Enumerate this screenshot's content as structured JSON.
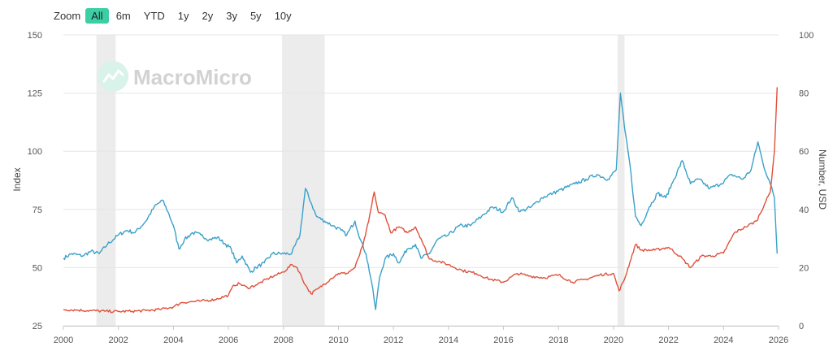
{
  "toolbar": {
    "zoom_label": "Zoom",
    "buttons": [
      "All",
      "6m",
      "YTD",
      "1y",
      "2y",
      "3y",
      "5y",
      "10y"
    ],
    "active": "All"
  },
  "watermark": {
    "text": "MacroMicro"
  },
  "colors": {
    "series1": "#3aa0c8",
    "series2": "#e0503a",
    "recession": "#ececec",
    "grid": "#e6e6e6"
  },
  "chart_data": {
    "type": "line",
    "title": "",
    "xlabel": "",
    "ylabel_left": "Index",
    "ylabel_right": "Number, USD",
    "xlim": [
      2000,
      2026
    ],
    "ylim_left": [
      25,
      150
    ],
    "ylim_right": [
      0,
      100
    ],
    "x_ticks": [
      "2000",
      "2002",
      "2004",
      "2006",
      "2008",
      "2010",
      "2012",
      "2014",
      "2016",
      "2018",
      "2020",
      "2022",
      "2024",
      "2026"
    ],
    "y_ticks_left": [
      150,
      125,
      100,
      75,
      50,
      25
    ],
    "y_ticks_right": [
      100,
      80,
      60,
      40,
      20,
      0
    ],
    "recession_bands": [
      [
        2001.2,
        2001.9
      ],
      [
        2007.95,
        2009.5
      ],
      [
        2020.15,
        2020.4
      ]
    ],
    "series": [
      {
        "name": "Index (left axis)",
        "axis": "left",
        "color": "#3aa0c8",
        "points": [
          [
            2000.0,
            54
          ],
          [
            2000.3,
            56
          ],
          [
            2000.7,
            55
          ],
          [
            2001.0,
            57
          ],
          [
            2001.3,
            56
          ],
          [
            2001.6,
            60
          ],
          [
            2002.0,
            64
          ],
          [
            2002.3,
            66
          ],
          [
            2002.6,
            65
          ],
          [
            2003.0,
            70
          ],
          [
            2003.3,
            76
          ],
          [
            2003.6,
            79
          ],
          [
            2003.8,
            74
          ],
          [
            2004.0,
            68
          ],
          [
            2004.2,
            58
          ],
          [
            2004.4,
            62
          ],
          [
            2004.7,
            65
          ],
          [
            2005.0,
            64
          ],
          [
            2005.3,
            62
          ],
          [
            2005.6,
            63
          ],
          [
            2005.9,
            60
          ],
          [
            2006.1,
            58
          ],
          [
            2006.3,
            52
          ],
          [
            2006.5,
            55
          ],
          [
            2006.8,
            48
          ],
          [
            2007.0,
            50
          ],
          [
            2007.3,
            52
          ],
          [
            2007.6,
            56
          ],
          [
            2008.0,
            56
          ],
          [
            2008.3,
            56
          ],
          [
            2008.6,
            64
          ],
          [
            2008.8,
            84
          ],
          [
            2009.0,
            78
          ],
          [
            2009.2,
            72
          ],
          [
            2009.5,
            70
          ],
          [
            2009.8,
            68
          ],
          [
            2010.1,
            66
          ],
          [
            2010.3,
            64
          ],
          [
            2010.6,
            70
          ],
          [
            2010.8,
            62
          ],
          [
            2011.0,
            56
          ],
          [
            2011.2,
            44
          ],
          [
            2011.35,
            32
          ],
          [
            2011.5,
            46
          ],
          [
            2011.7,
            54
          ],
          [
            2012.0,
            56
          ],
          [
            2012.2,
            52
          ],
          [
            2012.5,
            58
          ],
          [
            2012.8,
            60
          ],
          [
            2013.0,
            54
          ],
          [
            2013.3,
            56
          ],
          [
            2013.6,
            62
          ],
          [
            2014.0,
            64
          ],
          [
            2014.4,
            68
          ],
          [
            2014.8,
            68
          ],
          [
            2015.2,
            72
          ],
          [
            2015.6,
            76
          ],
          [
            2016.0,
            74
          ],
          [
            2016.3,
            80
          ],
          [
            2016.6,
            74
          ],
          [
            2017.0,
            76
          ],
          [
            2017.4,
            80
          ],
          [
            2017.8,
            82
          ],
          [
            2018.2,
            84
          ],
          [
            2018.6,
            86
          ],
          [
            2019.0,
            88
          ],
          [
            2019.4,
            90
          ],
          [
            2019.8,
            88
          ],
          [
            2020.1,
            92
          ],
          [
            2020.25,
            125
          ],
          [
            2020.4,
            110
          ],
          [
            2020.6,
            94
          ],
          [
            2020.8,
            72
          ],
          [
            2021.0,
            68
          ],
          [
            2021.3,
            76
          ],
          [
            2021.6,
            82
          ],
          [
            2021.9,
            80
          ],
          [
            2022.2,
            88
          ],
          [
            2022.5,
            96
          ],
          [
            2022.8,
            86
          ],
          [
            2023.1,
            88
          ],
          [
            2023.5,
            84
          ],
          [
            2023.9,
            86
          ],
          [
            2024.3,
            90
          ],
          [
            2024.7,
            88
          ],
          [
            2025.0,
            92
          ],
          [
            2025.25,
            104
          ],
          [
            2025.45,
            94
          ],
          [
            2025.7,
            86
          ],
          [
            2025.85,
            80
          ],
          [
            2025.95,
            56
          ]
        ]
      },
      {
        "name": "Number, USD (right axis)",
        "axis": "right",
        "color": "#e0503a",
        "points": [
          [
            2000.0,
            5.6
          ],
          [
            2000.5,
            5.4
          ],
          [
            2001.0,
            5.2
          ],
          [
            2001.5,
            5.0
          ],
          [
            2002.0,
            4.9
          ],
          [
            2002.5,
            5.0
          ],
          [
            2003.0,
            5.2
          ],
          [
            2003.5,
            5.6
          ],
          [
            2004.0,
            6.5
          ],
          [
            2004.3,
            8.0
          ],
          [
            2004.6,
            8.2
          ],
          [
            2005.0,
            8.5
          ],
          [
            2005.5,
            9.0
          ],
          [
            2006.0,
            10.5
          ],
          [
            2006.2,
            14.0
          ],
          [
            2006.4,
            14.5
          ],
          [
            2006.7,
            13.0
          ],
          [
            2007.0,
            14.0
          ],
          [
            2007.5,
            16.5
          ],
          [
            2008.0,
            18.5
          ],
          [
            2008.3,
            21.0
          ],
          [
            2008.5,
            20.0
          ],
          [
            2008.8,
            14.0
          ],
          [
            2009.0,
            11.0
          ],
          [
            2009.3,
            13.0
          ],
          [
            2009.7,
            16.0
          ],
          [
            2010.0,
            18.0
          ],
          [
            2010.3,
            18.0
          ],
          [
            2010.6,
            20.0
          ],
          [
            2010.9,
            28.0
          ],
          [
            2011.1,
            36.0
          ],
          [
            2011.3,
            46.0
          ],
          [
            2011.45,
            39.0
          ],
          [
            2011.7,
            38.0
          ],
          [
            2011.9,
            32.0
          ],
          [
            2012.2,
            34.0
          ],
          [
            2012.5,
            32.0
          ],
          [
            2012.8,
            34.0
          ],
          [
            2013.0,
            30.0
          ],
          [
            2013.3,
            23.0
          ],
          [
            2013.7,
            22.0
          ],
          [
            2014.0,
            21.0
          ],
          [
            2014.5,
            19.0
          ],
          [
            2015.0,
            18.0
          ],
          [
            2015.5,
            16.0
          ],
          [
            2016.0,
            15.0
          ],
          [
            2016.5,
            18.0
          ],
          [
            2017.0,
            17.0
          ],
          [
            2017.5,
            16.5
          ],
          [
            2018.0,
            17.5
          ],
          [
            2018.5,
            15.0
          ],
          [
            2019.0,
            16.0
          ],
          [
            2019.5,
            17.5
          ],
          [
            2020.0,
            18.0
          ],
          [
            2020.2,
            12.0
          ],
          [
            2020.4,
            16.0
          ],
          [
            2020.6,
            22.0
          ],
          [
            2020.8,
            28.0
          ],
          [
            2021.0,
            26.0
          ],
          [
            2021.5,
            26.0
          ],
          [
            2022.0,
            27.0
          ],
          [
            2022.4,
            24.0
          ],
          [
            2022.8,
            20.0
          ],
          [
            2023.2,
            24.0
          ],
          [
            2023.6,
            24.0
          ],
          [
            2024.0,
            25.0
          ],
          [
            2024.4,
            32.0
          ],
          [
            2024.8,
            34.0
          ],
          [
            2025.2,
            36.0
          ],
          [
            2025.5,
            42.0
          ],
          [
            2025.7,
            46.0
          ],
          [
            2025.85,
            60.0
          ],
          [
            2025.95,
            82.0
          ]
        ]
      }
    ]
  }
}
